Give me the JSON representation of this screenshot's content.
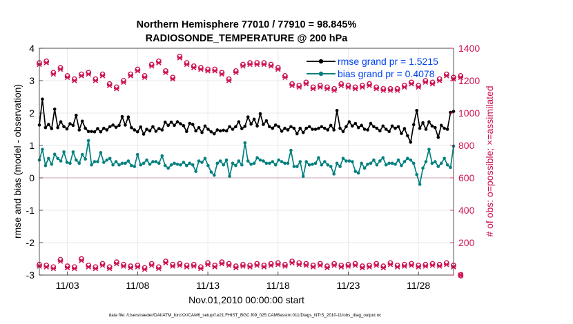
{
  "chart_data": {
    "type": "line",
    "title_line1": "Northern Hemisphere 77010 / 77910 = 98.845%",
    "title_line2": "RADIOSONDE_TEMPERATURE @ 200 hPa",
    "xlabel": "Nov.01,2010 00:00:00 start",
    "ylabel_left": "rmse and bias (model - observation)",
    "ylabel_right": "# of obs: o=possible; ×=assimilated",
    "footer": "data file: /Users/raeder/DAI/ATM_forcXX/CAM6_setup/f.e21.FHIST_BGC.f09_025.CAM6assim.011/Diags_NTrS_2010-11/obs_diag_output.nc",
    "xlim": [
      1.0,
      30.5
    ],
    "ylim_left": [
      -3,
      4
    ],
    "ylim_right": [
      0,
      1400
    ],
    "x_ticks": [
      3,
      8,
      13,
      18,
      23,
      28
    ],
    "x_tick_labels": [
      "11/03",
      "11/08",
      "11/13",
      "11/18",
      "11/23",
      "11/28"
    ],
    "y_ticks_left": [
      -3,
      -2,
      -1,
      0,
      1,
      2,
      3,
      4
    ],
    "y_tick_labels_left": [
      "-3",
      "-2",
      "-1",
      "0",
      "1",
      "2",
      "3",
      "4"
    ],
    "y_ticks_right": [
      0,
      200,
      400,
      600,
      800,
      1000,
      1200,
      1400
    ],
    "y_tick_labels_right": [
      "0",
      "200",
      "400",
      "600",
      "800",
      "1000",
      "1200",
      "1400"
    ],
    "legend": [
      {
        "label": "rmse grand pr = 1.5215",
        "color": "#000000"
      },
      {
        "label": "bias grand pr = 0.4078",
        "color": "#00807f"
      }
    ],
    "colors": {
      "rmse": "#000000",
      "bias": "#00807f",
      "obs": "#cc1452",
      "legend_text": "#0044ee",
      "zero_line": "#c8a0b4"
    },
    "series": [
      {
        "name": "rmse",
        "axis": "left",
        "values": [
          1.63,
          2.43,
          1.55,
          1.65,
          1.52,
          2.12,
          1.55,
          1.73,
          1.58,
          1.51,
          1.67,
          1.62,
          1.93,
          1.48,
          1.75,
          1.53,
          1.43,
          1.43,
          1.42,
          1.52,
          1.42,
          1.53,
          1.48,
          1.58,
          1.63,
          1.56,
          1.62,
          1.89,
          1.63,
          1.88,
          1.55,
          1.48,
          1.42,
          1.57,
          1.35,
          1.5,
          1.45,
          1.58,
          1.44,
          1.52,
          1.48,
          1.72,
          1.62,
          1.72,
          1.62,
          1.73,
          1.67,
          1.61,
          1.43,
          1.68,
          1.65,
          1.45,
          1.55,
          1.4,
          1.6,
          1.5,
          1.42,
          1.36,
          1.48,
          1.45,
          1.47,
          1.45,
          1.58,
          1.5,
          1.58,
          1.73,
          1.52,
          1.59,
          1.88,
          1.66,
          1.81,
          1.6,
          1.98,
          1.65,
          1.76,
          1.58,
          1.53,
          1.63,
          1.58,
          1.44,
          1.53,
          1.48,
          1.58,
          1.53,
          1.36,
          1.53,
          1.4,
          1.53,
          1.58,
          1.5,
          1.5,
          1.53,
          1.58,
          1.53,
          1.48,
          1.62,
          1.48,
          2.08,
          1.53,
          1.43,
          1.58,
          1.73,
          1.6,
          1.68,
          1.55,
          1.62,
          1.5,
          1.48,
          1.68,
          1.58,
          1.53,
          1.45,
          1.6,
          1.5,
          1.43,
          1.6,
          1.53,
          1.58,
          1.37,
          1.52,
          1.3,
          1.1,
          1.64,
          2.08,
          1.53,
          1.7,
          1.5,
          1.73,
          1.6,
          1.55,
          1.25,
          1.62,
          1.53,
          1.5,
          2.02,
          2.05
        ]
      },
      {
        "name": "bias",
        "axis": "left",
        "values": [
          0.55,
          0.88,
          0.38,
          0.6,
          0.42,
          0.73,
          0.6,
          0.52,
          0.8,
          0.48,
          0.45,
          0.8,
          0.55,
          0.45,
          0.72,
          0.58,
          1.15,
          0.4,
          0.5,
          0.5,
          0.78,
          0.48,
          0.55,
          0.6,
          0.4,
          0.5,
          0.4,
          0.45,
          0.45,
          0.52,
          0.38,
          0.35,
          0.72,
          0.4,
          0.45,
          0.55,
          0.42,
          0.5,
          0.5,
          0.45,
          0.68,
          0.38,
          0.3,
          0.4,
          0.45,
          0.42,
          0.4,
          0.48,
          0.38,
          0.45,
          0.4,
          0.2,
          0.52,
          0.48,
          0.6,
          0.38,
          0.18,
          0.08,
          0.45,
          0.52,
          0.4,
          0.55,
          0.05,
          0.45,
          0.38,
          0.52,
          0.4,
          1.08,
          0.52,
          0.42,
          0.45,
          0.62,
          0.55,
          0.52,
          0.45,
          0.45,
          0.5,
          0.4,
          0.55,
          0.5,
          0.45,
          0.45,
          0.85,
          0.35,
          0.35,
          0.5,
          0.05,
          0.5,
          0.4,
          0.42,
          0.45,
          0.62,
          0.4,
          0.5,
          0.4,
          0.35,
          0.12,
          0.45,
          0.35,
          0.6,
          0.52,
          0.52,
          0.5,
          0.2,
          0.15,
          0.45,
          0.3,
          0.42,
          0.45,
          0.55,
          0.4,
          0.52,
          0.62,
          0.4,
          0.45,
          0.45,
          0.42,
          0.55,
          0.38,
          0.5,
          0.6,
          0.55,
          0.45,
          0.1,
          -0.2,
          0.3,
          0.5,
          0.88,
          0.45,
          0.5,
          0.35,
          0.45,
          0.6,
          0.4,
          0.32,
          0.98
        ]
      },
      {
        "name": "obs_possible",
        "axis": "right",
        "values": [
          1310,
          1320,
          1250,
          1280,
          1230,
          1210,
          1240,
          1250,
          1210,
          1240,
          1180,
          1160,
          1200,
          1240,
          1270,
          1230,
          1300,
          1320,
          1260,
          1220,
          1350,
          1310,
          1290,
          1280,
          1270,
          1270,
          1250,
          1210,
          1260,
          1300,
          1310,
          1310,
          1310,
          1300,
          1280,
          1230,
          1180,
          1170,
          1190,
          1160,
          1170,
          1160,
          1150,
          1180,
          1170,
          1160,
          1170,
          1180,
          1160,
          1150,
          1150,
          1150,
          1170,
          1190,
          1170,
          1200,
          1190,
          1210,
          1240,
          1220,
          1230
        ]
      },
      {
        "name": "obs_assimilated",
        "axis": "right",
        "values": [
          1300,
          1310,
          1240,
          1270,
          1220,
          1200,
          1230,
          1240,
          1200,
          1230,
          1170,
          1150,
          1190,
          1230,
          1260,
          1220,
          1290,
          1310,
          1250,
          1210,
          1340,
          1300,
          1280,
          1270,
          1260,
          1260,
          1240,
          1200,
          1250,
          1290,
          1300,
          1300,
          1300,
          1290,
          1270,
          1220,
          1170,
          1160,
          1180,
          1150,
          1160,
          1150,
          1140,
          1170,
          1160,
          1150,
          1160,
          1170,
          1150,
          1140,
          1140,
          1140,
          1160,
          1180,
          1160,
          1190,
          1180,
          1200,
          1230,
          1210,
          1220
        ]
      },
      {
        "name": "obs_low_possible",
        "axis": "right",
        "values": [
          65,
          60,
          50,
          95,
          55,
          50,
          100,
          60,
          50,
          70,
          50,
          80,
          65,
          55,
          60,
          45,
          70,
          50,
          85,
          65,
          70,
          60,
          65,
          50,
          75,
          60,
          80,
          70,
          55,
          65,
          60,
          70,
          60,
          70,
          75,
          65,
          85,
          75,
          70,
          60,
          70,
          55,
          70,
          60,
          65,
          70,
          55,
          60,
          70,
          55,
          75,
          60,
          65,
          70,
          60,
          65,
          70,
          65,
          75,
          60,
          0
        ]
      },
      {
        "name": "obs_low_assimilated",
        "axis": "right",
        "values": [
          55,
          50,
          40,
          85,
          45,
          40,
          90,
          50,
          40,
          60,
          40,
          70,
          55,
          45,
          50,
          35,
          60,
          40,
          75,
          55,
          60,
          50,
          55,
          40,
          65,
          50,
          70,
          60,
          45,
          55,
          50,
          60,
          50,
          60,
          65,
          55,
          75,
          65,
          60,
          50,
          60,
          45,
          60,
          50,
          55,
          60,
          45,
          50,
          60,
          45,
          65,
          50,
          55,
          60,
          50,
          55,
          60,
          55,
          65,
          50,
          0
        ]
      }
    ]
  }
}
